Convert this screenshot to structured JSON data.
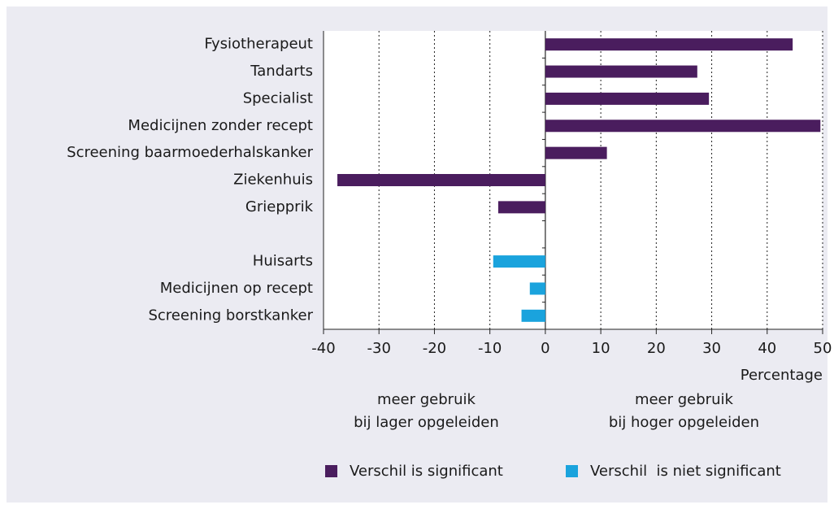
{
  "chart_data": {
    "type": "hbar",
    "categories": [
      "Fysiotherapeut",
      "Tandarts",
      "Specialist",
      "Medicijnen zonder recept",
      "Screening baarmoederhalskanker",
      "Ziekenhuis",
      "Griepprik",
      null,
      "Huisarts",
      "Medicijnen op recept",
      "Screening borstkanker"
    ],
    "series": [
      {
        "name": "Verschil is significant",
        "color": "#4a1d5e",
        "values": [
          44.6,
          27.4,
          29.5,
          49.6,
          11.1,
          -37.5,
          -8.5,
          null,
          null,
          null,
          null
        ]
      },
      {
        "name": "Verschil  is niet significant",
        "color": "#1aa3dd",
        "values": [
          null,
          null,
          null,
          null,
          null,
          null,
          null,
          null,
          -9.4,
          -2.8,
          -4.3
        ]
      }
    ],
    "xlim": [
      -40,
      50
    ],
    "xticks": [
      -40,
      -30,
      -20,
      -10,
      0,
      10,
      20,
      30,
      40,
      50
    ],
    "x_label": "Percentage",
    "annotations": [
      {
        "lines": [
          "meer gebruik",
          "bij lager opgeleiden"
        ]
      },
      {
        "lines": [
          "meer gebruik",
          "bij hoger opgeleiden"
        ]
      }
    ],
    "grid": true,
    "legend": "bottom"
  }
}
